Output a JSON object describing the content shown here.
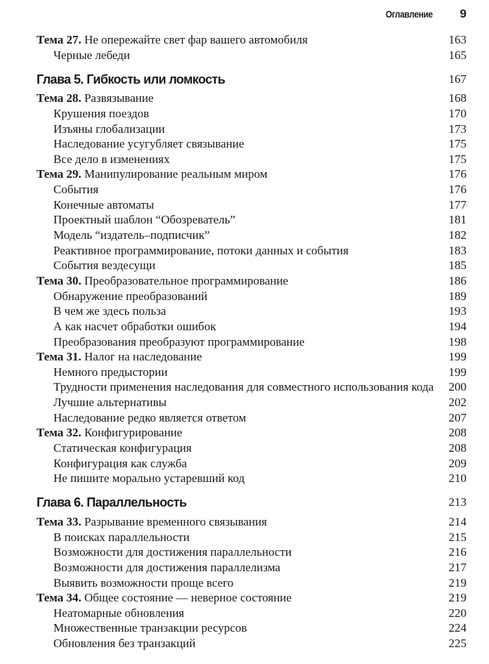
{
  "header": {
    "title": "Оглавление",
    "page_number": "9"
  },
  "entries": [
    {
      "type": "topic",
      "label": "Тема 27.",
      "title": "Не опережайте свет фар вашего автомобиля",
      "page": "163"
    },
    {
      "type": "sub",
      "title": "Черные лебеди",
      "page": "165"
    },
    {
      "type": "chapter",
      "title": "Глава 5. Гибкость или ломкость",
      "page": "167"
    },
    {
      "type": "topic",
      "label": "Тема 28.",
      "title": "Развязывание",
      "page": "168"
    },
    {
      "type": "sub",
      "title": "Крушения поездов",
      "page": "170"
    },
    {
      "type": "sub",
      "title": "Изъяны глобализации",
      "page": "173"
    },
    {
      "type": "sub",
      "title": "Наследование усугубляет связывание",
      "page": "175"
    },
    {
      "type": "sub",
      "title": "Все дело в изменениях",
      "page": "175"
    },
    {
      "type": "topic",
      "label": "Тема 29.",
      "title": "Манипулирование реальным миром",
      "page": "176"
    },
    {
      "type": "sub",
      "title": "События",
      "page": "176"
    },
    {
      "type": "sub",
      "title": "Конечные автоматы",
      "page": "177"
    },
    {
      "type": "sub",
      "title": "Проектный шаблон “Обозреватель”",
      "page": "181"
    },
    {
      "type": "sub",
      "title": "Модель “издатель–подписчик”",
      "page": "182"
    },
    {
      "type": "sub",
      "title": "Реактивное программирование, потоки данных и события",
      "page": "183"
    },
    {
      "type": "sub",
      "title": "События вездесущи",
      "page": "185"
    },
    {
      "type": "topic",
      "label": "Тема 30.",
      "title": "Преобразовательное программирование",
      "page": "186"
    },
    {
      "type": "sub",
      "title": "Обнаружение преобразований",
      "page": "189"
    },
    {
      "type": "sub",
      "title": "В чем же здесь польза",
      "page": "193"
    },
    {
      "type": "sub",
      "title": "А как насчет обработки ошибок",
      "page": "194"
    },
    {
      "type": "sub",
      "title": "Преобразования преобразуют программирование",
      "page": "198"
    },
    {
      "type": "topic",
      "label": "Тема 31.",
      "title": "Налог на наследование",
      "page": "199"
    },
    {
      "type": "sub",
      "title": "Немного предыстории",
      "page": "199"
    },
    {
      "type": "sub",
      "title": "Трудности применения наследования для совместного использования кода",
      "page": "200"
    },
    {
      "type": "sub",
      "title": "Лучшие альтернативы",
      "page": "202"
    },
    {
      "type": "sub",
      "title": "Наследование редко является ответом",
      "page": "207"
    },
    {
      "type": "topic",
      "label": "Тема 32.",
      "title": "Конфигурирование",
      "page": "208"
    },
    {
      "type": "sub",
      "title": "Статическая конфигурация",
      "page": "208"
    },
    {
      "type": "sub",
      "title": "Конфигурация как служба",
      "page": "209"
    },
    {
      "type": "sub",
      "title": "Не пишите морально устаревший код",
      "page": "210"
    },
    {
      "type": "chapter",
      "title": "Глава 6. Параллельность",
      "page": "213"
    },
    {
      "type": "topic",
      "label": "Тема 33.",
      "title": "Разрывание временного связывания",
      "page": "214"
    },
    {
      "type": "sub",
      "title": "В поисках параллельности",
      "page": "215"
    },
    {
      "type": "sub",
      "title": "Возможности для достижения параллельности",
      "page": "216"
    },
    {
      "type": "sub",
      "title": "Возможности для достижения параллелизма",
      "page": "217"
    },
    {
      "type": "sub",
      "title": "Выявить возможности проще всего",
      "page": "219"
    },
    {
      "type": "topic",
      "label": "Тема 34.",
      "title": "Общее состояние — неверное состояние",
      "page": "219"
    },
    {
      "type": "sub",
      "title": "Неатомарные обновления",
      "page": "220"
    },
    {
      "type": "sub",
      "title": "Множественные транзакции ресурсов",
      "page": "224"
    },
    {
      "type": "sub",
      "title": "Обновления без транзакций",
      "page": "225"
    }
  ]
}
